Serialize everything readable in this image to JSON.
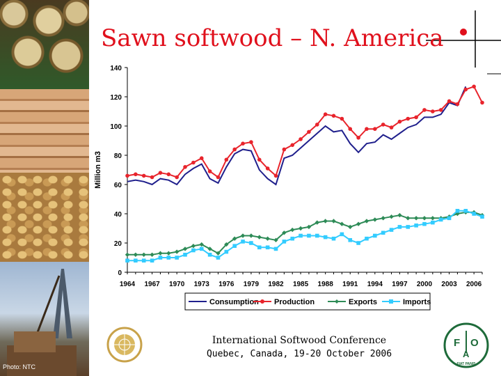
{
  "slide": {
    "title": "Sawn softwood – N. America",
    "photo_credit": "Photo: NTC",
    "footer_line1": "International Softwood Conference",
    "footer_line2": "Quebec, Canada, 19-20 October 2006",
    "un_logo_icon": "un-emblem-icon",
    "fao_logo_icon": "fao-logo-icon",
    "fao_logo_letters": [
      "F",
      "A",
      "O"
    ],
    "fao_logo_motto": "FIAT PANIS",
    "title_color": "#e0101c"
  },
  "chart_data": {
    "type": "line",
    "ylabel": "Million m3",
    "xlabel": "",
    "ylim": [
      0,
      140
    ],
    "yticks": [
      0,
      20,
      40,
      60,
      80,
      100,
      120,
      140
    ],
    "xlim": [
      1964,
      2007
    ],
    "xticks": [
      1964,
      1967,
      1970,
      1973,
      1976,
      1979,
      1982,
      1985,
      1988,
      1991,
      1994,
      1997,
      2000,
      2003,
      2006
    ],
    "grid": false,
    "legend": "bottom",
    "series": [
      {
        "name": "Consumption",
        "color": "#1f1f8c",
        "marker": "none",
        "x": [
          1964,
          1965,
          1966,
          1967,
          1968,
          1969,
          1970,
          1971,
          1972,
          1973,
          1974,
          1975,
          1976,
          1977,
          1978,
          1979,
          1980,
          1981,
          1982,
          1983,
          1984,
          1985,
          1986,
          1987,
          1988,
          1989,
          1990,
          1991,
          1992,
          1993,
          1994,
          1995,
          1996,
          1997,
          1998,
          1999,
          2000,
          2001,
          2002,
          2003,
          2004,
          2005
        ],
        "values": [
          62,
          63,
          62,
          60,
          64,
          63,
          60,
          67,
          71,
          74,
          64,
          61,
          72,
          81,
          84,
          83,
          70,
          64,
          60,
          78,
          80,
          85,
          90,
          95,
          100,
          96,
          97,
          88,
          82,
          88,
          89,
          94,
          91,
          95,
          99,
          101,
          106,
          106,
          108,
          116,
          114,
          127
        ]
      },
      {
        "name": "Production",
        "color": "#e8242c",
        "marker": "circle",
        "x": [
          1964,
          1965,
          1966,
          1967,
          1968,
          1969,
          1970,
          1971,
          1972,
          1973,
          1974,
          1975,
          1976,
          1977,
          1978,
          1979,
          1980,
          1981,
          1982,
          1983,
          1984,
          1985,
          1986,
          1987,
          1988,
          1989,
          1990,
          1991,
          1992,
          1993,
          1994,
          1995,
          1996,
          1997,
          1998,
          1999,
          2000,
          2001,
          2002,
          2003,
          2004,
          2005,
          2006,
          2007
        ],
        "values": [
          66,
          67,
          66,
          65,
          68,
          67,
          65,
          72,
          75,
          78,
          69,
          65,
          77,
          84,
          88,
          89,
          77,
          71,
          66,
          84,
          87,
          91,
          96,
          101,
          108,
          107,
          105,
          98,
          92,
          98,
          98,
          101,
          99,
          103,
          105,
          106,
          111,
          110,
          111,
          117,
          115,
          125,
          127,
          116
        ]
      },
      {
        "name": "Exports",
        "color": "#2e8b57",
        "marker": "diamond",
        "x": [
          1964,
          1965,
          1966,
          1967,
          1968,
          1969,
          1970,
          1971,
          1972,
          1973,
          1974,
          1975,
          1976,
          1977,
          1978,
          1979,
          1980,
          1981,
          1982,
          1983,
          1984,
          1985,
          1986,
          1987,
          1988,
          1989,
          1990,
          1991,
          1992,
          1993,
          1994,
          1995,
          1996,
          1997,
          1998,
          1999,
          2000,
          2001,
          2002,
          2003,
          2004,
          2005,
          2006,
          2007
        ],
        "values": [
          12,
          12,
          12,
          12,
          13,
          13,
          14,
          16,
          18,
          19,
          16,
          13,
          19,
          23,
          25,
          25,
          24,
          23,
          22,
          27,
          29,
          30,
          31,
          34,
          35,
          35,
          33,
          31,
          33,
          35,
          36,
          37,
          38,
          39,
          37,
          37,
          37,
          37,
          37,
          38,
          40,
          41,
          41,
          39
        ]
      },
      {
        "name": "Imports",
        "color": "#33ccff",
        "marker": "square",
        "x": [
          1964,
          1965,
          1966,
          1967,
          1968,
          1969,
          1970,
          1971,
          1972,
          1973,
          1974,
          1975,
          1976,
          1977,
          1978,
          1979,
          1980,
          1981,
          1982,
          1983,
          1984,
          1985,
          1986,
          1987,
          1988,
          1989,
          1990,
          1991,
          1992,
          1993,
          1994,
          1995,
          1996,
          1997,
          1998,
          1999,
          2000,
          2001,
          2002,
          2003,
          2004,
          2005,
          2006,
          2007
        ],
        "values": [
          8,
          8,
          8,
          8,
          10,
          10,
          10,
          12,
          15,
          16,
          12,
          10,
          14,
          18,
          21,
          20,
          17,
          17,
          16,
          21,
          23,
          25,
          25,
          25,
          24,
          23,
          26,
          22,
          20,
          23,
          25,
          27,
          29,
          31,
          31,
          32,
          33,
          34,
          36,
          37,
          42,
          42,
          40,
          38
        ]
      }
    ]
  }
}
